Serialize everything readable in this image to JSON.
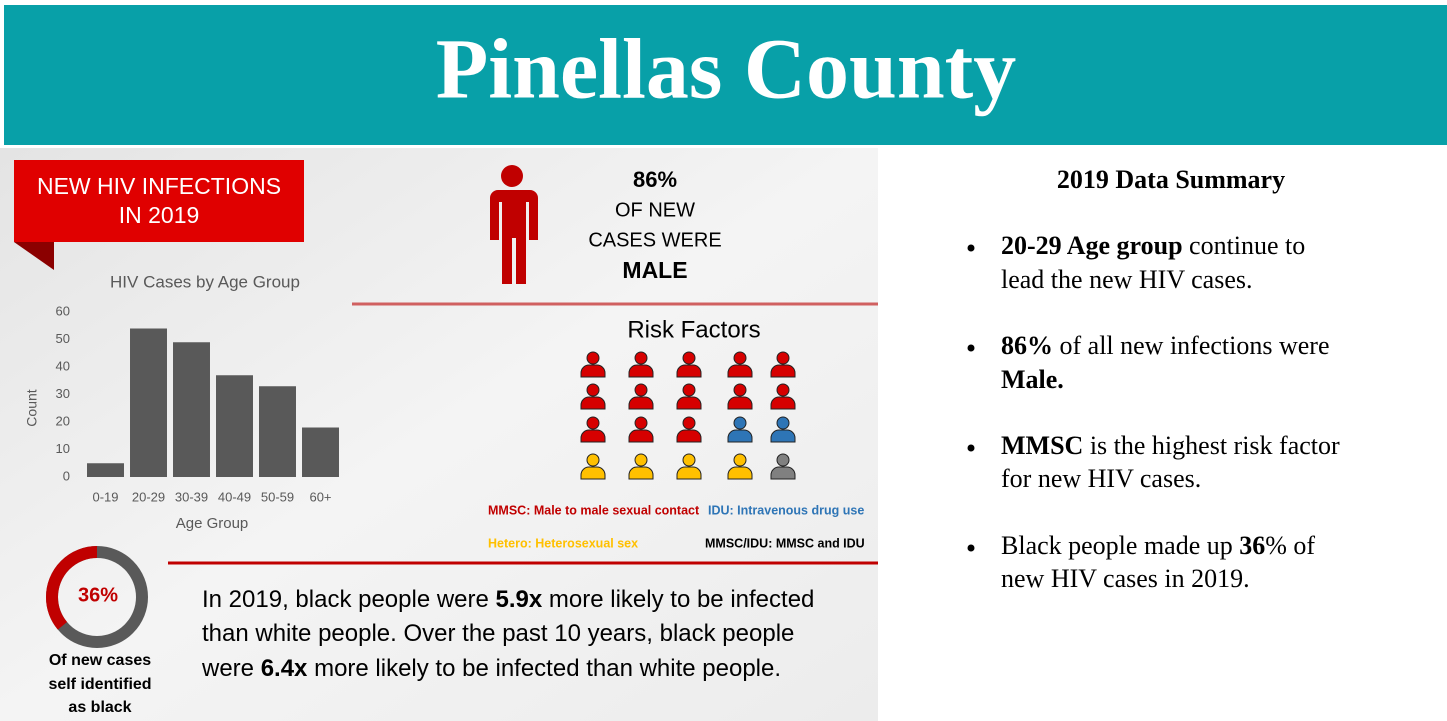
{
  "header": {
    "title": "Pinellas County"
  },
  "badge": [
    "NEW HIV INFECTIONS",
    "IN 2019"
  ],
  "male": {
    "percent": "86%",
    "lines": [
      "OF NEW",
      "CASES WERE",
      "MALE"
    ]
  },
  "chart_data": {
    "type": "bar",
    "title": "HIV Cases by Age Group",
    "x_label": "Age Group",
    "y_label": "Count",
    "categories": [
      "0-19",
      "20-29",
      "30-39",
      "40-49",
      "50-59",
      "60+"
    ],
    "values": [
      5,
      54,
      49,
      37,
      33,
      18
    ],
    "color": "#595959",
    "ylim": [
      0,
      60
    ],
    "yticks": [
      0,
      10,
      20,
      30,
      40,
      50,
      60
    ],
    "grid": false
  },
  "risk_factors": {
    "title": "Risk Factors",
    "groups": [
      {
        "name": "MMSC: Male to male sexual contact",
        "color": "#d60000",
        "count": 13
      },
      {
        "name": "IDU: Intravenous drug use",
        "color": "#2e75b6",
        "count": 2
      },
      {
        "name": "Hetero: Heterosexual sex",
        "color": "#ffc000",
        "count": 4
      },
      {
        "name": "MMSC/IDU: MMSC and IDU",
        "color": "#808080",
        "count": 1
      }
    ]
  },
  "donut": {
    "value": 36,
    "label": "36%",
    "caption": [
      "Of new cases",
      "self identified",
      "as black"
    ]
  },
  "paragraph": [
    [
      "In 2019, black people were ",
      "5.9x",
      " more likely to be infected"
    ],
    [
      "than white people. Over the past 10 years, black people"
    ],
    [
      "were ",
      "6.4x",
      " more likely to be infected than white people."
    ]
  ],
  "summary": {
    "title": "2019 Data Summary",
    "bullets": [
      [
        [
          "20-29 Age group",
          " continue to"
        ],
        [
          "lead the new HIV cases."
        ]
      ],
      [
        [
          "86%",
          " of all new infections were"
        ],
        [
          "Male."
        ]
      ],
      [
        [
          "MMSC",
          " is the highest risk factor"
        ],
        [
          "for new HIV cases."
        ]
      ],
      [
        [
          "Black people made up ",
          "36",
          "% of"
        ],
        [
          "new HIV cases in 2019."
        ]
      ]
    ]
  }
}
